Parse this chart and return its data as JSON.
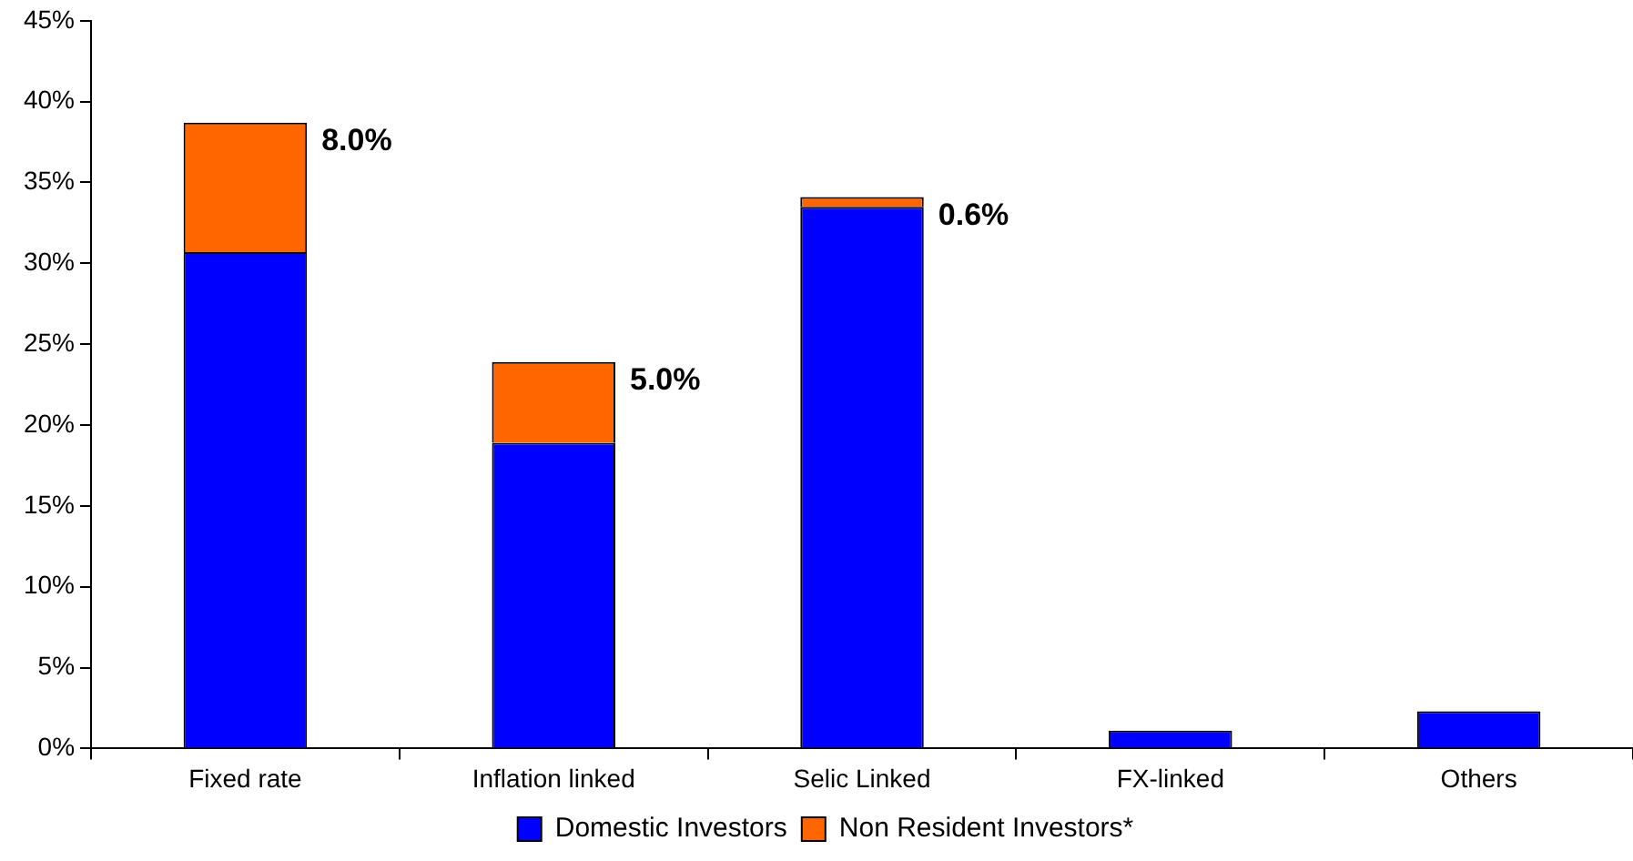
{
  "chart_data": {
    "type": "bar",
    "stacked": true,
    "categories": [
      "Fixed rate",
      "Inflation linked",
      "Selic Linked",
      "FX-linked",
      "Others"
    ],
    "series": [
      {
        "name": "Domestic Investors",
        "color": "#0000ff",
        "values": [
          30.7,
          18.9,
          33.5,
          1.1,
          2.3
        ]
      },
      {
        "name": "Non Resident Investors*",
        "color": "#ff6600",
        "values": [
          8.0,
          5.0,
          0.6,
          null,
          null
        ]
      }
    ],
    "annotations": [
      {
        "text": "8.0%",
        "x": "Fixed rate",
        "y": 38.7
      },
      {
        "text": "5.0%",
        "x": "Inflation linked",
        "y": 23.9
      },
      {
        "text": "0.6%",
        "x": "Selic Linked",
        "y": 34.1
      }
    ],
    "ylim": [
      0,
      45
    ],
    "yticks": [
      {
        "value": 0,
        "label": "0%"
      },
      {
        "value": 5,
        "label": "5%"
      },
      {
        "value": 10,
        "label": "10%"
      },
      {
        "value": 15,
        "label": "15%"
      },
      {
        "value": 20,
        "label": "20%"
      },
      {
        "value": 25,
        "label": "25%"
      },
      {
        "value": 30,
        "label": "30%"
      },
      {
        "value": 35,
        "label": "35%"
      },
      {
        "value": 40,
        "label": "40%"
      },
      {
        "value": 45,
        "label": "45%"
      }
    ],
    "grid": false,
    "legend": "bottom"
  }
}
